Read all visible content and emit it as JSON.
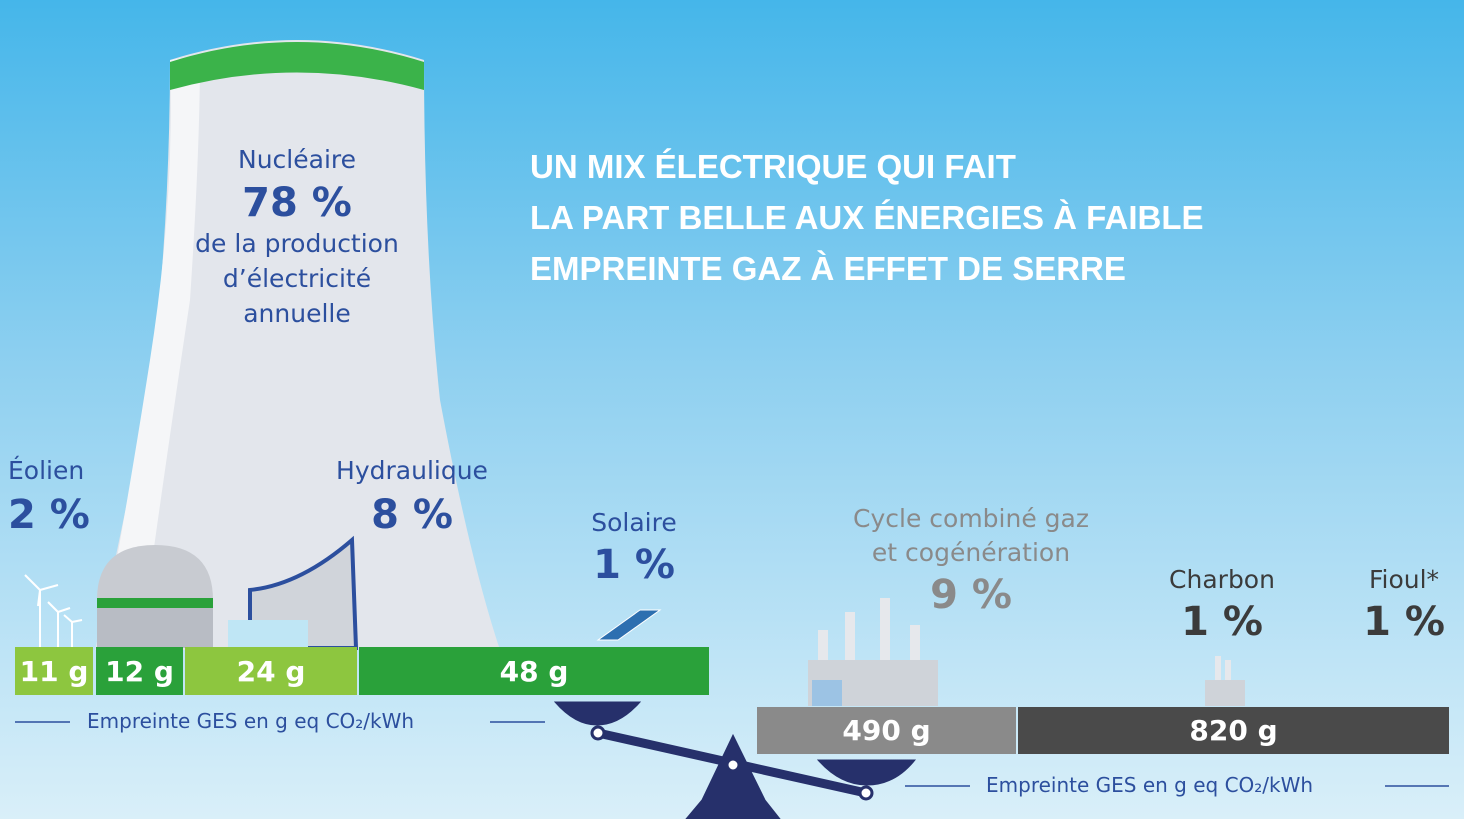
{
  "title": [
    "UN MIX ÉLECTRIQUE QUI FAIT",
    "LA PART BELLE AUX ÉNERGIES À FAIBLE",
    "EMPREINTE GAZ À EFFET DE SERRE"
  ],
  "nuclear": {
    "label": "Nucléaire",
    "share": "78 %",
    "description": [
      "de la production",
      "d’électricité",
      "annuelle"
    ]
  },
  "sources": [
    {
      "label": "Éolien",
      "share": "2 %"
    },
    {
      "label": "Hydraulique",
      "share": "8 %"
    },
    {
      "label": "Solaire",
      "share": "1 %"
    },
    {
      "label": [
        "Cycle combiné gaz",
        "et cogénération"
      ],
      "share": "9 %"
    },
    {
      "label": "Charbon",
      "share": "1 %"
    },
    {
      "label": "Fioul*",
      "share": "1 %"
    }
  ],
  "low_footprint": {
    "segments": [
      "11 g",
      "12 g",
      "24 g",
      "48 g"
    ],
    "caption": "Empreinte GES en g eq CO₂/kWh"
  },
  "high_footprint": {
    "segments": [
      "490 g",
      "820 g"
    ],
    "caption": "Empreinte GES en g eq CO₂/kWh"
  }
}
